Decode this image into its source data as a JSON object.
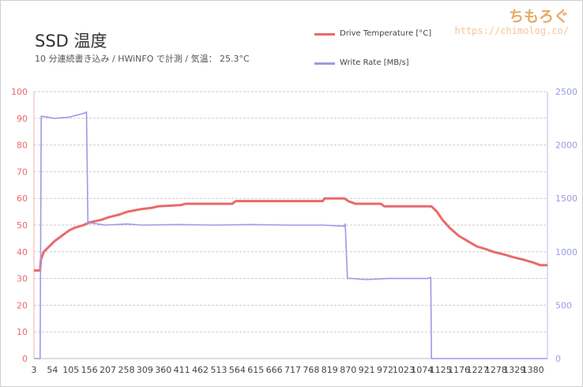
{
  "branding": {
    "logo": "ちもろぐ",
    "url": "https://chimolog.co/"
  },
  "chart_data": {
    "type": "line",
    "title": "SSD 温度",
    "subtitle": "10 分連続書き込み / HWiNFO で計測 / 気温： 25.3°C",
    "x": {
      "ticks": [
        "3",
        "54",
        "105",
        "156",
        "207",
        "258",
        "309",
        "360",
        "411",
        "462",
        "513",
        "564",
        "615",
        "666",
        "717",
        "768",
        "819",
        "870",
        "921",
        "972",
        "1023",
        "1074",
        "1125",
        "1176",
        "1227",
        "1278",
        "1329",
        "1380"
      ],
      "range": [
        3,
        1420
      ]
    },
    "y_left": {
      "ylim": [
        0,
        100
      ],
      "ticks": [
        0,
        10,
        20,
        30,
        40,
        50,
        60,
        70,
        80,
        90,
        100
      ],
      "color": "#e86a6a"
    },
    "y_right": {
      "ylim": [
        0,
        2500
      ],
      "ticks": [
        0,
        500,
        1000,
        1500,
        2000,
        2500
      ],
      "color": "#9b9be6"
    },
    "grid": true,
    "legend": "top-right",
    "series": [
      {
        "name": "Drive Temperature [°C]",
        "axis": "left",
        "color": "#e86a6a",
        "points": [
          [
            3,
            33
          ],
          [
            20,
            33
          ],
          [
            22,
            37
          ],
          [
            30,
            40
          ],
          [
            45,
            42
          ],
          [
            60,
            44
          ],
          [
            80,
            46
          ],
          [
            100,
            48
          ],
          [
            115,
            49
          ],
          [
            140,
            50
          ],
          [
            156,
            51
          ],
          [
            190,
            52
          ],
          [
            210,
            53
          ],
          [
            240,
            54
          ],
          [
            260,
            55
          ],
          [
            300,
            56
          ],
          [
            330,
            56.5
          ],
          [
            345,
            57
          ],
          [
            410,
            57.5
          ],
          [
            420,
            58
          ],
          [
            550,
            58
          ],
          [
            560,
            59
          ],
          [
            700,
            59
          ],
          [
            800,
            59
          ],
          [
            805,
            60
          ],
          [
            860,
            60
          ],
          [
            870,
            59
          ],
          [
            890,
            58
          ],
          [
            960,
            58
          ],
          [
            970,
            57
          ],
          [
            1100,
            57
          ],
          [
            1115,
            55
          ],
          [
            1130,
            52
          ],
          [
            1150,
            49
          ],
          [
            1175,
            46
          ],
          [
            1200,
            44
          ],
          [
            1225,
            42
          ],
          [
            1250,
            41
          ],
          [
            1270,
            40
          ],
          [
            1300,
            39
          ],
          [
            1325,
            38
          ],
          [
            1355,
            37
          ],
          [
            1380,
            36
          ],
          [
            1400,
            35
          ],
          [
            1420,
            35
          ]
        ]
      },
      {
        "name": "Write Rate [MB/s]",
        "axis": "right",
        "color": "#9b9be6",
        "points": [
          [
            3,
            0
          ],
          [
            20,
            0
          ],
          [
            23,
            2270
          ],
          [
            60,
            2250
          ],
          [
            100,
            2260
          ],
          [
            144,
            2300
          ],
          [
            148,
            2310
          ],
          [
            152,
            1260
          ],
          [
            160,
            1270
          ],
          [
            200,
            1250
          ],
          [
            260,
            1260
          ],
          [
            300,
            1250
          ],
          [
            400,
            1255
          ],
          [
            500,
            1250
          ],
          [
            600,
            1255
          ],
          [
            700,
            1250
          ],
          [
            800,
            1250
          ],
          [
            860,
            1240
          ],
          [
            862,
            1260
          ],
          [
            868,
            750
          ],
          [
            880,
            750
          ],
          [
            920,
            740
          ],
          [
            980,
            750
          ],
          [
            1040,
            750
          ],
          [
            1090,
            750
          ],
          [
            1098,
            760
          ],
          [
            1100,
            0
          ],
          [
            1420,
            0
          ]
        ]
      }
    ]
  }
}
